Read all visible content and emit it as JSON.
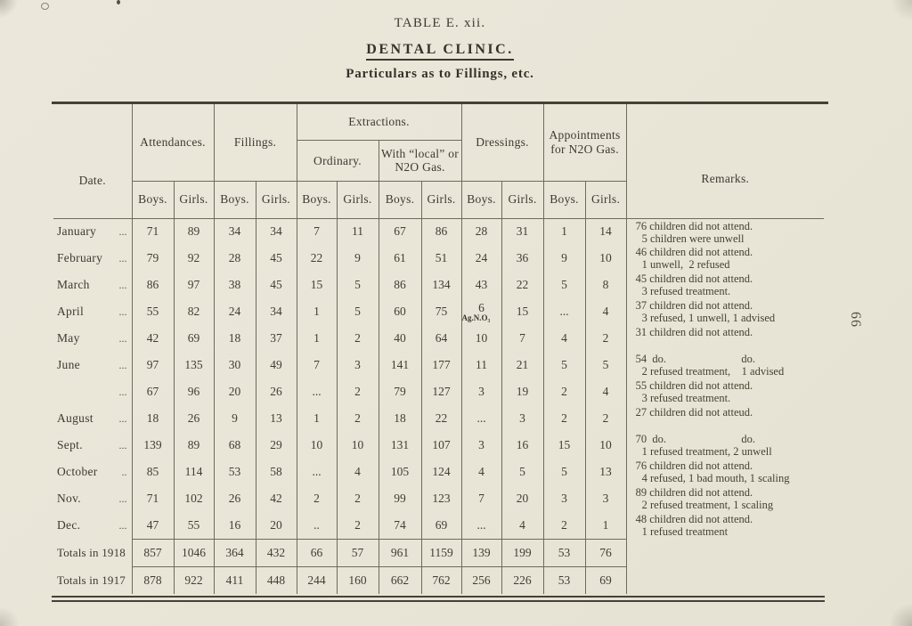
{
  "page": {
    "table_label": "TABLE E. xii.",
    "title": "DENTAL CLINIC.",
    "subtitle": "Particulars as to Fillings, etc.",
    "side_page_number": "66"
  },
  "table": {
    "columns": {
      "date": "Date.",
      "attendances": "Attendances.",
      "fillings": "Fillings.",
      "extractions": "Extractions.",
      "ordinary": "Ordinary.",
      "with_local": "With “local” or N2O Gas.",
      "dressings": "Dressings.",
      "appointments": "Appointments for N2O Gas.",
      "remarks": "Remarks.",
      "boys": "Boys.",
      "girls": "Girls."
    },
    "rows": [
      {
        "date": "January",
        "leader": "...",
        "att_b": "71",
        "att_g": "89",
        "fill_b": "34",
        "fill_g": "34",
        "ord_b": "7",
        "ord_g": "11",
        "loc_b": "67",
        "loc_g": "86",
        "dress_b": "28",
        "dress_g": "31",
        "app_b": "1",
        "app_g": "14",
        "remark1": "76 children did not attend.",
        "remark2": "5 children were unwell"
      },
      {
        "date": "February",
        "leader": "...",
        "att_b": "79",
        "att_g": "92",
        "fill_b": "28",
        "fill_g": "45",
        "ord_b": "22",
        "ord_g": "9",
        "loc_b": "61",
        "loc_g": "51",
        "dress_b": "24",
        "dress_g": "36",
        "app_b": "9",
        "app_g": "10",
        "remark1": "46 children did not attend.",
        "remark2": "1 unwell,  2 refused"
      },
      {
        "date": "March",
        "leader": "...",
        "att_b": "86",
        "att_g": "97",
        "fill_b": "38",
        "fill_g": "45",
        "ord_b": "15",
        "ord_g": "5",
        "loc_b": "86",
        "loc_g": "134",
        "dress_b": "43",
        "dress_g": "22",
        "app_b": "5",
        "app_g": "8",
        "remark1": "45 children did not attend.",
        "remark2": "3 refused treatment."
      },
      {
        "date": "April",
        "leader": "...",
        "att_b": "55",
        "att_g": "82",
        "fill_b": "24",
        "fill_g": "34",
        "ord_b": "1",
        "ord_g": "5",
        "loc_b": "60",
        "loc_g": "75",
        "dress_b": "6",
        "dress_b_note": "Ag.N.O₃",
        "dress_g": "15",
        "app_b": "...",
        "app_g": "4",
        "remark1": "37 children did not attend.",
        "remark2": "3 refused, 1 unwell, 1 advised"
      },
      {
        "date": "May",
        "leader": "...",
        "att_b": "42",
        "att_g": "69",
        "fill_b": "18",
        "fill_g": "37",
        "ord_b": "1",
        "ord_g": "2",
        "loc_b": "40",
        "loc_g": "64",
        "dress_b": "10",
        "dress_g": "7",
        "app_b": "4",
        "app_g": "2",
        "remark1": "31 children did not attend."
      },
      {
        "date": "June",
        "leader": "...",
        "att_b": "97",
        "att_g": "135",
        "fill_b": "30",
        "fill_g": "49",
        "ord_b": "7",
        "ord_g": "3",
        "loc_b": "141",
        "loc_g": "177",
        "dress_b": "11",
        "dress_g": "21",
        "app_b": "5",
        "app_g": "5",
        "remark1": "54  do.                           do.",
        "remark2": "2 refused treatment,    1 advised"
      },
      {
        "date": "",
        "leader": "...",
        "att_b": "67",
        "att_g": "96",
        "fill_b": "20",
        "fill_g": "26",
        "ord_b": "...",
        "ord_g": "2",
        "loc_b": "79",
        "loc_g": "127",
        "dress_b": "3",
        "dress_g": "19",
        "app_b": "2",
        "app_g": "4",
        "remark1": "55 children did not attend.",
        "remark2": "3 refused treatment."
      },
      {
        "date": "August",
        "leader": "...",
        "att_b": "18",
        "att_g": "26",
        "fill_b": "9",
        "fill_g": "13",
        "ord_b": "1",
        "ord_g": "2",
        "loc_b": "18",
        "loc_g": "22",
        "dress_b": "...",
        "dress_g": "3",
        "app_b": "2",
        "app_g": "2",
        "remark1": "27 children did not atteud."
      },
      {
        "date": "Sept.",
        "leader": "...",
        "att_b": "139",
        "att_g": "89",
        "fill_b": "68",
        "fill_g": "29",
        "ord_b": "10",
        "ord_g": "10",
        "loc_b": "131",
        "loc_g": "107",
        "dress_b": "3",
        "dress_g": "16",
        "app_b": "15",
        "app_g": "10",
        "remark1": "70  do.                           do.",
        "remark2": "1 refused treatment, 2 unwell"
      },
      {
        "date": "October",
        "leader": "..",
        "att_b": "85",
        "att_g": "114",
        "fill_b": "53",
        "fill_g": "58",
        "ord_b": "...",
        "ord_g": "4",
        "loc_b": "105",
        "loc_g": "124",
        "dress_b": "4",
        "dress_g": "5",
        "app_b": "5",
        "app_g": "13",
        "remark1": "76 children did not attend.",
        "remark2": "4 refused, 1 bad mouth, 1 scaling"
      },
      {
        "date": "Nov.",
        "leader": "...",
        "att_b": "71",
        "att_g": "102",
        "fill_b": "26",
        "fill_g": "42",
        "ord_b": "2",
        "ord_g": "2",
        "loc_b": "99",
        "loc_g": "123",
        "dress_b": "7",
        "dress_g": "20",
        "app_b": "3",
        "app_g": "3",
        "remark1": "89 children did not attend.",
        "remark2": "2 refused treatment, 1 scaling"
      },
      {
        "date": "Dec.",
        "leader": "...",
        "att_b": "47",
        "att_g": "55",
        "fill_b": "16",
        "fill_g": "20",
        "ord_b": "..",
        "ord_g": "2",
        "loc_b": "74",
        "loc_g": "69",
        "dress_b": "...",
        "dress_g": "4",
        "app_b": "2",
        "app_g": "1",
        "remark1": "48 children did not attend.",
        "remark2": "1 refused treatment"
      }
    ],
    "totals": [
      {
        "label": "Totals in 1918",
        "att_b": "857",
        "att_g": "1046",
        "fill_b": "364",
        "fill_g": "432",
        "ord_b": "66",
        "ord_g": "57",
        "loc_b": "961",
        "loc_g": "1159",
        "dress_b": "139",
        "dress_g": "199",
        "app_b": "53",
        "app_g": "76"
      },
      {
        "label": "Totals in 1917",
        "att_b": "878",
        "att_g": "922",
        "fill_b": "411",
        "fill_g": "448",
        "ord_b": "244",
        "ord_g": "160",
        "loc_b": "662",
        "loc_g": "762",
        "dress_b": "256",
        "dress_g": "226",
        "app_b": "53",
        "app_g": "69"
      }
    ]
  }
}
